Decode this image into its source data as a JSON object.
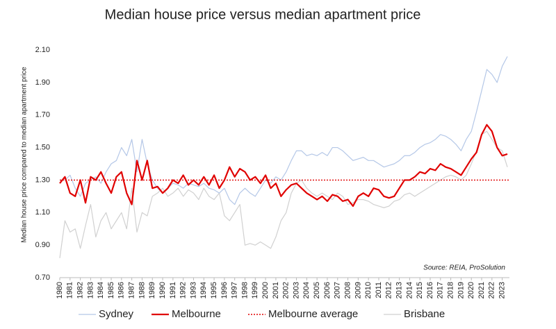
{
  "chart_data": {
    "type": "line",
    "title": "Median house price versus median apartment price",
    "y_label": "Median house price compared to median apartment price",
    "source": "Source: REIA, ProSolution",
    "x": [
      1980,
      1980.5,
      1981,
      1981.5,
      1982,
      1982.5,
      1983,
      1983.5,
      1984,
      1984.5,
      1985,
      1985.5,
      1986,
      1986.5,
      1987,
      1987.5,
      1988,
      1988.5,
      1989,
      1989.5,
      1990,
      1990.5,
      1991,
      1991.5,
      1992,
      1992.5,
      1993,
      1993.5,
      1994,
      1994.5,
      1995,
      1995.5,
      1996,
      1996.5,
      1997,
      1997.5,
      1998,
      1998.5,
      1999,
      1999.5,
      2000,
      2000.5,
      2001,
      2001.5,
      2002,
      2002.5,
      2003,
      2003.5,
      2004,
      2004.5,
      2005,
      2005.5,
      2006,
      2006.5,
      2007,
      2007.5,
      2008,
      2008.5,
      2009,
      2009.5,
      2010,
      2010.5,
      2011,
      2011.5,
      2012,
      2012.5,
      2013,
      2013.5,
      2014,
      2014.5,
      2015,
      2015.5,
      2016,
      2016.5,
      2017,
      2017.5,
      2018,
      2018.5,
      2019,
      2019.5,
      2020,
      2020.5,
      2021,
      2021.5,
      2022,
      2022.5,
      2023,
      2023.5
    ],
    "series": [
      {
        "name": "Sydney",
        "color": "#b4c7e7",
        "width": 1.2,
        "values": [
          1.3,
          1.3,
          1.33,
          1.25,
          1.2,
          1.28,
          1.3,
          1.32,
          1.28,
          1.35,
          1.4,
          1.42,
          1.5,
          1.45,
          1.55,
          1.35,
          1.55,
          1.4,
          1.3,
          1.25,
          1.22,
          1.25,
          1.28,
          1.27,
          1.25,
          1.28,
          1.27,
          1.26,
          1.28,
          1.25,
          1.24,
          1.22,
          1.25,
          1.18,
          1.15,
          1.22,
          1.25,
          1.22,
          1.2,
          1.25,
          1.3,
          1.28,
          1.32,
          1.3,
          1.35,
          1.42,
          1.48,
          1.48,
          1.45,
          1.46,
          1.45,
          1.47,
          1.45,
          1.5,
          1.5,
          1.48,
          1.45,
          1.42,
          1.43,
          1.44,
          1.42,
          1.42,
          1.4,
          1.38,
          1.39,
          1.4,
          1.42,
          1.45,
          1.45,
          1.47,
          1.5,
          1.52,
          1.53,
          1.55,
          1.58,
          1.57,
          1.55,
          1.52,
          1.48,
          1.55,
          1.6,
          1.72,
          1.85,
          1.98,
          1.95,
          1.9,
          2.0,
          2.06
        ]
      },
      {
        "name": "Melbourne",
        "color": "#e00000",
        "width": 2.2,
        "values": [
          1.28,
          1.32,
          1.22,
          1.2,
          1.3,
          1.16,
          1.32,
          1.3,
          1.35,
          1.28,
          1.22,
          1.32,
          1.35,
          1.22,
          1.15,
          1.42,
          1.3,
          1.42,
          1.25,
          1.26,
          1.22,
          1.25,
          1.3,
          1.28,
          1.33,
          1.27,
          1.3,
          1.27,
          1.32,
          1.27,
          1.33,
          1.25,
          1.3,
          1.38,
          1.32,
          1.37,
          1.35,
          1.3,
          1.32,
          1.28,
          1.33,
          1.25,
          1.28,
          1.2,
          1.24,
          1.27,
          1.28,
          1.25,
          1.22,
          1.2,
          1.18,
          1.2,
          1.17,
          1.21,
          1.2,
          1.17,
          1.18,
          1.14,
          1.2,
          1.22,
          1.2,
          1.25,
          1.24,
          1.2,
          1.19,
          1.2,
          1.25,
          1.3,
          1.3,
          1.32,
          1.35,
          1.34,
          1.37,
          1.36,
          1.4,
          1.38,
          1.37,
          1.35,
          1.33,
          1.38,
          1.43,
          1.47,
          1.58,
          1.64,
          1.6,
          1.5,
          1.45,
          1.46
        ]
      },
      {
        "name": "Brisbane",
        "color": "#d0d0d0",
        "width": 1.2,
        "values": [
          0.82,
          1.05,
          0.98,
          1.0,
          0.88,
          1.02,
          1.15,
          0.95,
          1.05,
          1.1,
          1.0,
          1.05,
          1.1,
          1.0,
          1.25,
          0.98,
          1.1,
          1.08,
          1.2,
          1.22,
          1.25,
          1.2,
          1.22,
          1.25,
          1.2,
          1.24,
          1.22,
          1.18,
          1.25,
          1.2,
          1.18,
          1.22,
          1.08,
          1.05,
          1.1,
          1.15,
          0.9,
          0.91,
          0.9,
          0.92,
          0.9,
          0.88,
          0.95,
          1.05,
          1.1,
          1.22,
          1.28,
          1.3,
          1.25,
          1.22,
          1.2,
          1.22,
          1.2,
          1.18,
          1.22,
          1.2,
          1.15,
          1.16,
          1.18,
          1.18,
          1.17,
          1.15,
          1.14,
          1.13,
          1.14,
          1.17,
          1.18,
          1.21,
          1.22,
          1.2,
          1.22,
          1.24,
          1.26,
          1.28,
          1.3,
          1.32,
          1.33,
          1.32,
          1.3,
          1.33,
          1.4,
          1.48,
          1.58,
          1.6,
          1.55,
          1.5,
          1.48,
          1.38
        ]
      }
    ],
    "average": {
      "name": "Melbourne average",
      "value": 1.3,
      "color": "#e00000"
    },
    "legend_order": [
      "Sydney",
      "Melbourne",
      "Melbourne average",
      "Brisbane"
    ],
    "xlim": [
      1980,
      2023.7
    ],
    "xticks": [
      1980,
      1981,
      1982,
      1983,
      1984,
      1985,
      1986,
      1987,
      1988,
      1989,
      1990,
      1991,
      1992,
      1993,
      1994,
      1995,
      1996,
      1997,
      1998,
      1999,
      2000,
      2001,
      2002,
      2003,
      2004,
      2005,
      2006,
      2007,
      2008,
      2009,
      2010,
      2011,
      2012,
      2013,
      2014,
      2015,
      2016,
      2017,
      2018,
      2019,
      2020,
      2021,
      2022,
      2023
    ],
    "ylim": [
      0.7,
      2.1
    ],
    "yticks": [
      {
        "value": 0.7,
        "label": "0.70"
      },
      {
        "value": 0.9,
        "label": "0.90"
      },
      {
        "value": 1.1,
        "label": "1.10"
      },
      {
        "value": 1.3,
        "label": "1.30"
      },
      {
        "value": 1.5,
        "label": "1.50"
      },
      {
        "value": 1.7,
        "label": "1.70"
      },
      {
        "value": 1.9,
        "label": "1.90"
      },
      {
        "value": 2.1,
        "label": "2.10"
      }
    ]
  }
}
